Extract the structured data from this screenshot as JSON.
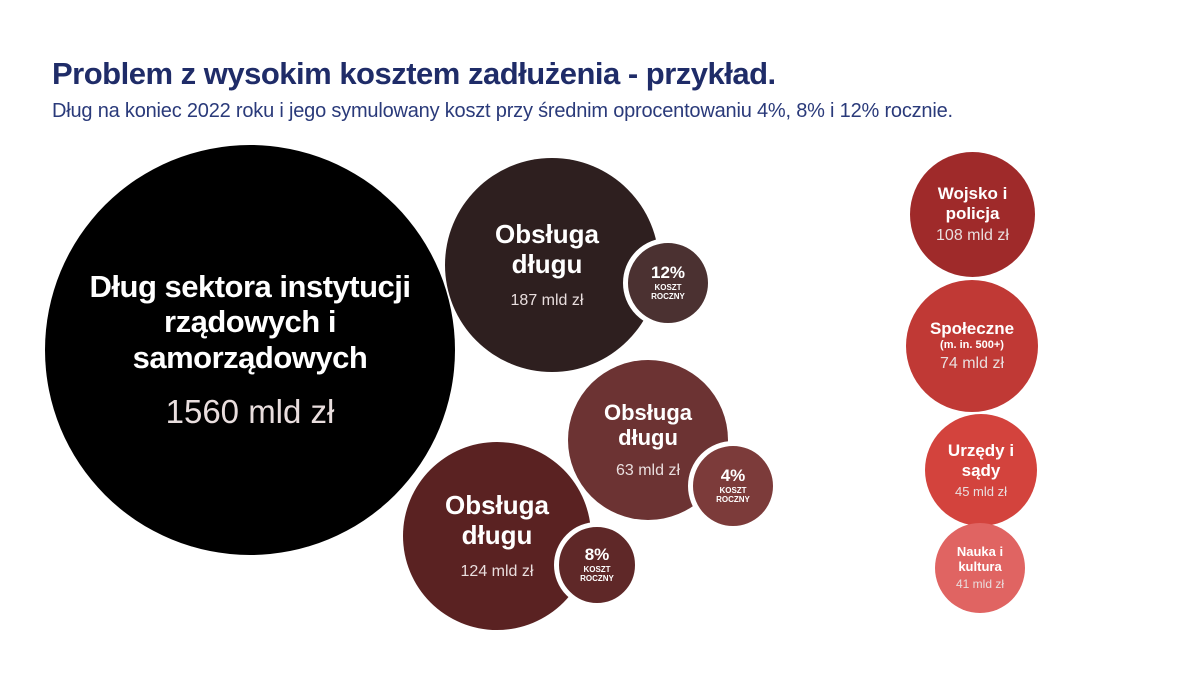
{
  "header": {
    "title": "Problem z wysokim kosztem zadłużenia - przykład.",
    "subtitle": "Dług na koniec 2022 roku i jego symulowany koszt przy średnim oprocentowaniu 4%, 8% i 12% rocznie."
  },
  "debt": {
    "label": "Dług sektora instytucji rządowych i samorządowych",
    "value": "1560 mld zł",
    "color": "#000000"
  },
  "debt_service": [
    {
      "label": "Obsługa długu",
      "value": "187 mld zł",
      "rate": "12%",
      "rate_label": "KOSZT ROCZNY",
      "color": "#2e1f1f"
    },
    {
      "label": "Obsługa długu",
      "value": "63 mld zł",
      "rate": "4%",
      "rate_label": "KOSZT ROCZNY",
      "color": "#6c3333"
    },
    {
      "label": "Obsługa długu",
      "value": "124 mld zł",
      "rate": "8%",
      "rate_label": "KOSZT ROCZNY",
      "color": "#5a2222"
    }
  ],
  "spending": [
    {
      "label": "Wojsko i policja",
      "value": "108 mld zł",
      "color": "#9f2a2a"
    },
    {
      "label": "Społeczne",
      "sublabel": "(m. in. 500+)",
      "value": "74 mld zł",
      "color": "#c03935"
    },
    {
      "label": "Urzędy i sądy",
      "value": "45 mld zł",
      "color": "#d3433d"
    },
    {
      "label": "Nauka i kultura",
      "value": "41 mld zł",
      "color": "#e06462"
    }
  ]
}
